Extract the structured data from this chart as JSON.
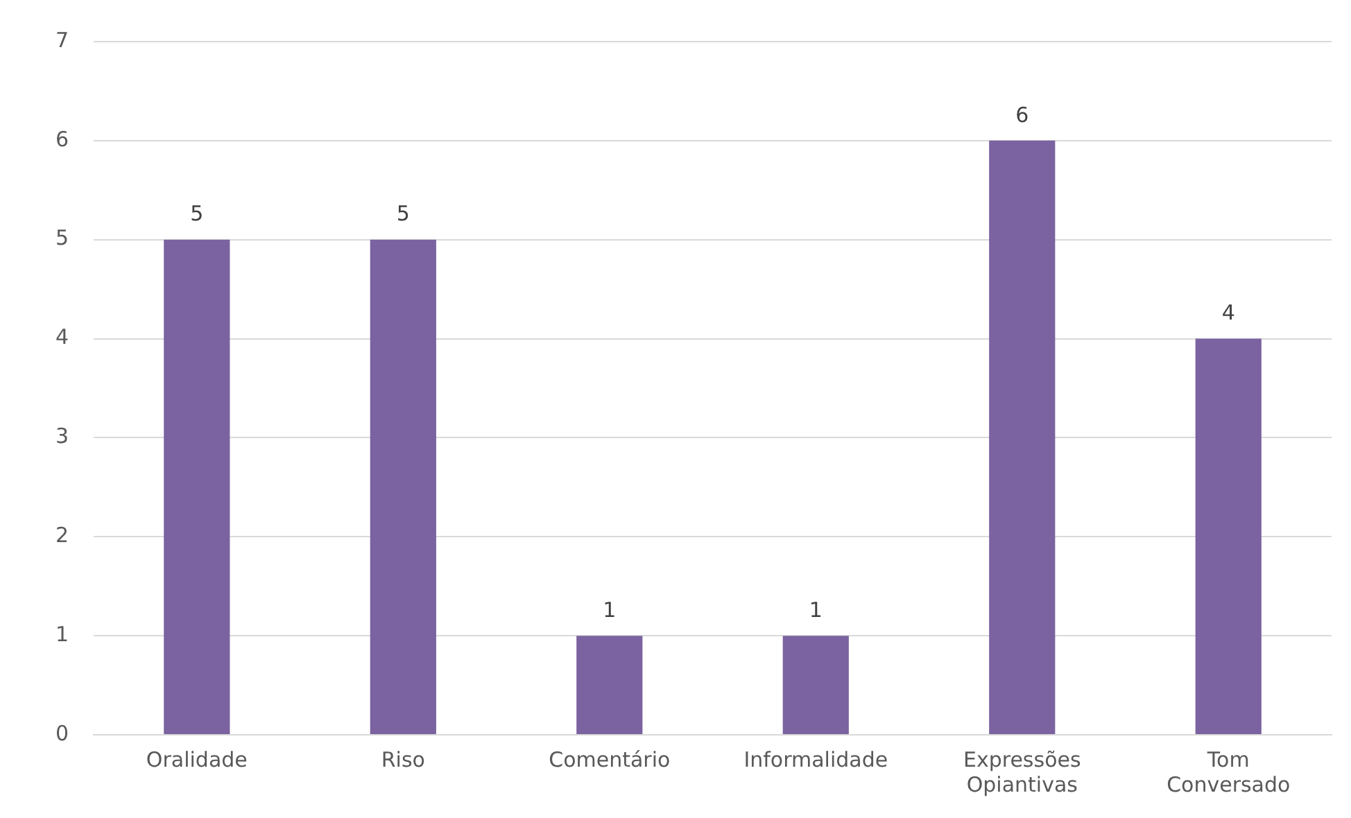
{
  "chart_data": {
    "type": "bar",
    "categories": [
      "Oralidade",
      "Riso",
      "Comentário",
      "Informalidade",
      "Expressões Opiantivas",
      "Tom Conversado"
    ],
    "values": [
      5,
      5,
      1,
      1,
      6,
      4
    ],
    "color": "#7b62a0",
    "ylim": [
      0,
      7
    ],
    "yticks": [
      0,
      1,
      2,
      3,
      4,
      5,
      6,
      7
    ],
    "grid": "y",
    "data_labels": true,
    "legend": false
  }
}
